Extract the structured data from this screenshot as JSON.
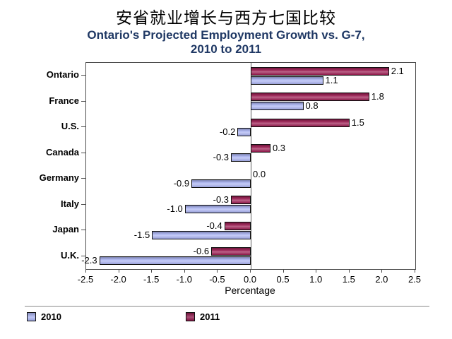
{
  "header": {
    "title_zh": "安省就业增长与西方七国比较",
    "title_zh_color": "#000000",
    "subtitle_line1": "Ontario's Projected Employment Growth vs. G-7,",
    "subtitle_line2": "2010 to 2011",
    "subtitle_color": "#1f3864"
  },
  "chart_data": {
    "type": "bar",
    "orientation": "horizontal",
    "title": "安省就业增长与西方七国比较",
    "subtitle": "Ontario's Projected Employment Growth vs. G-7, 2010 to 2011",
    "categories": [
      "Ontario",
      "France",
      "U.S.",
      "Canada",
      "Germany",
      "Italy",
      "Japan",
      "U.K."
    ],
    "series": [
      {
        "name": "2011",
        "color": "#9b1a50",
        "values": [
          2.1,
          1.8,
          1.5,
          0.3,
          0.0,
          -0.3,
          -0.4,
          -0.6
        ]
      },
      {
        "name": "2010",
        "color": "#aab3f2",
        "values": [
          1.1,
          0.8,
          -0.2,
          -0.3,
          -0.9,
          -1.0,
          -1.5,
          -2.3
        ]
      }
    ],
    "bar_order_top_to_bottom": [
      "2011",
      "2010"
    ],
    "value_label_decimals": 1,
    "xlabel": "Percentage",
    "xlim": [
      -2.5,
      2.5
    ],
    "xtick_labels": [
      "-2.5",
      "-2.0",
      "-1.5",
      "-1.0",
      "-0.5",
      "0.0",
      "0.5",
      "1.0",
      "1.5",
      "2.0",
      "2.5"
    ],
    "grid": false,
    "legend_position": "bottom",
    "legend": [
      {
        "label": "2010",
        "color": "#aab3f2"
      },
      {
        "label": "2011",
        "color": "#8d1448"
      }
    ]
  },
  "colors": {
    "bar_2011": "#9b1a50",
    "bar_2010": "#aab3f2",
    "bar_border": "#101010",
    "plot_border": "#4d4d4d",
    "zero_line": "#5a5a5a",
    "divider": "#8a8a8a",
    "axis_text": "#000000"
  }
}
